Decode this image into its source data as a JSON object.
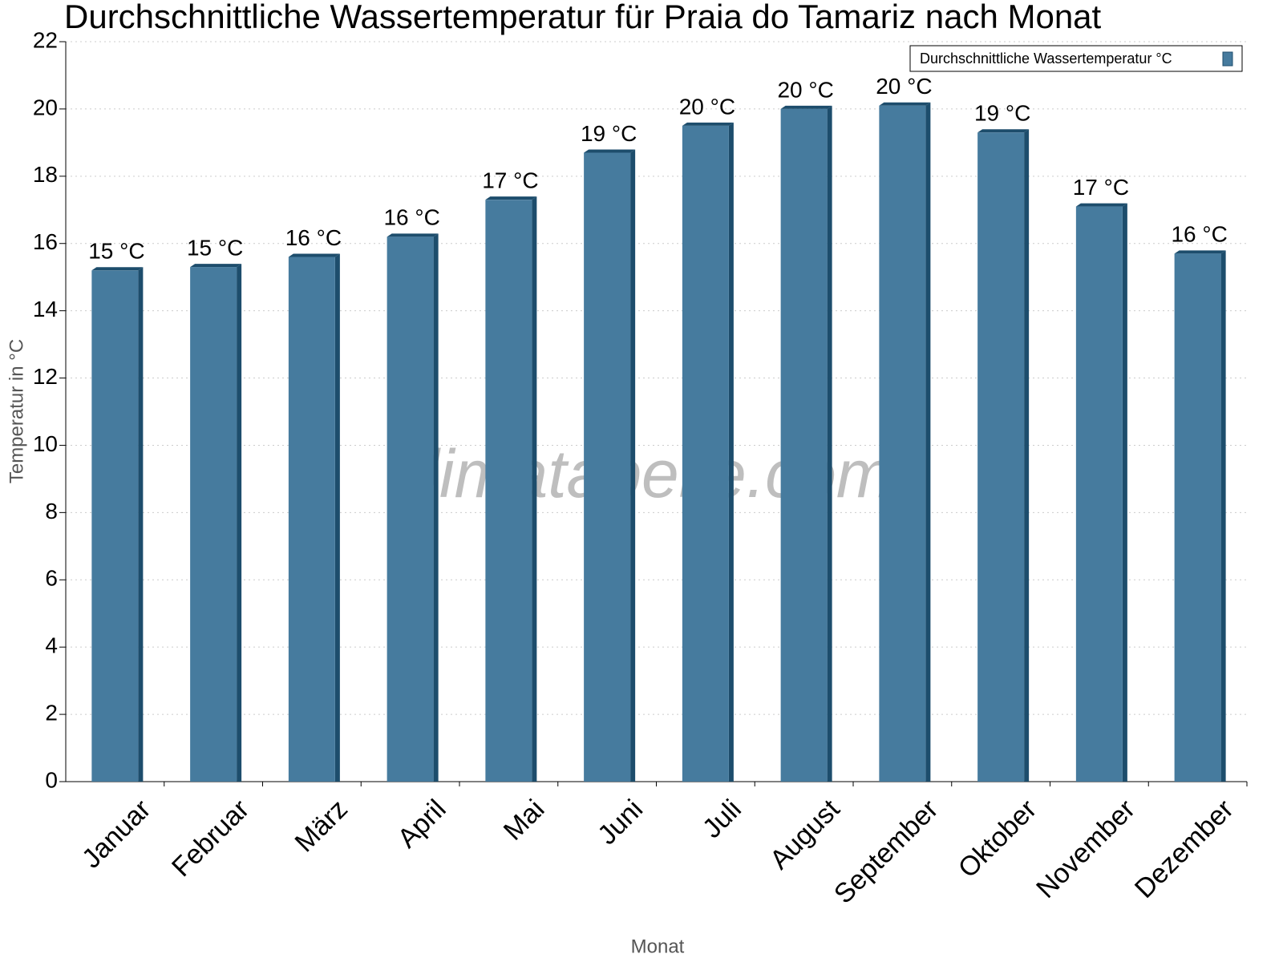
{
  "chart_data": {
    "type": "bar",
    "title": "Durchschnittliche Wassertemperatur für Praia do Tamariz nach Monat",
    "x_label": "Monat",
    "y_label": "Temperatur in °C",
    "watermark": "klimatabelle.com",
    "categories": [
      "Januar",
      "Februar",
      "März",
      "April",
      "Mai",
      "Juni",
      "Juli",
      "August",
      "September",
      "Oktober",
      "November",
      "Dezember"
    ],
    "series": [
      {
        "name": "Durchschnittliche Wassertemperatur °C",
        "color": "#467b9e",
        "values": [
          15.2,
          15.3,
          15.6,
          16.2,
          17.3,
          18.7,
          19.5,
          20.0,
          20.1,
          19.3,
          17.1,
          15.7
        ],
        "value_labels": [
          "15 °C",
          "15 °C",
          "16 °C",
          "16 °C",
          "17 °C",
          "19 °C",
          "20 °C",
          "20 °C",
          "20 °C",
          "19 °C",
          "17 °C",
          "16 °C"
        ]
      }
    ],
    "ylim": [
      0,
      22
    ],
    "yticks": [
      0,
      2,
      4,
      6,
      8,
      10,
      12,
      14,
      16,
      18,
      20,
      22
    ],
    "grid": true,
    "legend": "top-right"
  }
}
